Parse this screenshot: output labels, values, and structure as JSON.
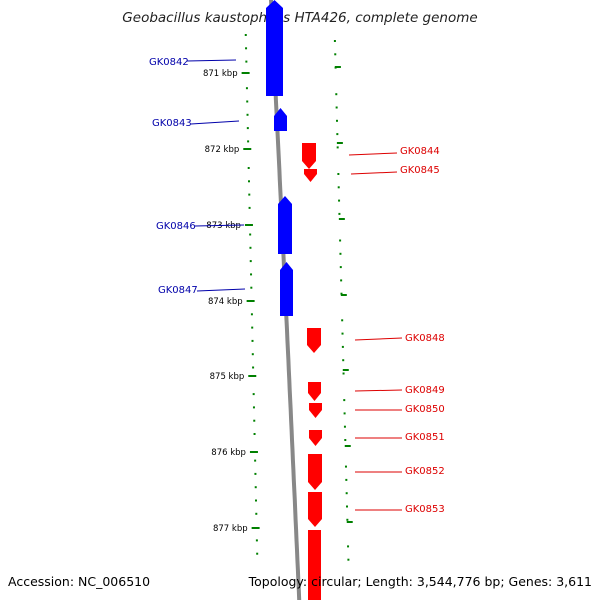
{
  "title": "Geobacillus kaustophilus HTA426, complete genome",
  "footer": {
    "accession": "Accession: NC_006510",
    "topology": "Topology: circular; Length: 3,544,776 bp; Genes: 3,611"
  },
  "colors": {
    "forward_strand": "#0000ff",
    "reverse_strand": "#ff0000",
    "backbone": "#888888",
    "tick": "#008000",
    "label_forward": "#0000aa",
    "label_reverse": "#dd0000"
  },
  "scale": {
    "unit": "kbp",
    "major_ticks": [
      "871 kbp",
      "872 kbp",
      "873 kbp",
      "874 kbp",
      "875 kbp",
      "876 kbp",
      "877 kbp"
    ]
  },
  "genes": [
    {
      "name": "GK0842",
      "strand": "+"
    },
    {
      "name": "GK0843",
      "strand": "+"
    },
    {
      "name": "GK0844",
      "strand": "-"
    },
    {
      "name": "GK0845",
      "strand": "-"
    },
    {
      "name": "GK0846",
      "strand": "+"
    },
    {
      "name": "GK0847",
      "strand": "+"
    },
    {
      "name": "GK0848",
      "strand": "-"
    },
    {
      "name": "GK0849",
      "strand": "-"
    },
    {
      "name": "GK0850",
      "strand": "-"
    },
    {
      "name": "GK0851",
      "strand": "-"
    },
    {
      "name": "GK0852",
      "strand": "-"
    },
    {
      "name": "GK0853",
      "strand": "-"
    }
  ]
}
